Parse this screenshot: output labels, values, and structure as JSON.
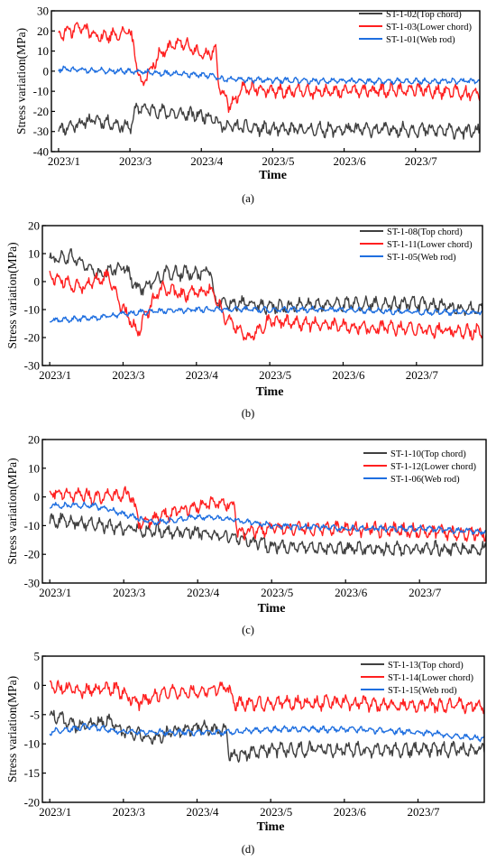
{
  "chart_data": [
    {
      "type": "line",
      "panel_label": "(a)",
      "xlabel": "Time",
      "ylabel": "Stress variation(MPa)",
      "x_tick_labels": [
        "2023/1",
        "2023/3",
        "2023/4",
        "2023/5",
        "2023/6",
        "2023/7"
      ],
      "x_tick_positions": [
        0.0,
        0.5,
        1.0,
        1.5,
        2.0,
        2.5
      ],
      "xlim": [
        -0.05,
        2.95
      ],
      "ylim": [
        -40,
        30
      ],
      "yticks": [
        -40,
        -30,
        -20,
        -10,
        0,
        10,
        20,
        30
      ],
      "legend_position": "top-right",
      "grid": false,
      "series": [
        {
          "name": "ST-1-02(Top chord)",
          "color": "#404040",
          "x": [
            0.0,
            0.25,
            0.5,
            0.55,
            0.8,
            1.0,
            1.1,
            1.12,
            1.5,
            2.0,
            2.5,
            2.9
          ],
          "y": [
            -29,
            -24,
            -28,
            -18,
            -21,
            -22,
            -23,
            -27,
            -29,
            -29,
            -29,
            -30
          ]
        },
        {
          "name": "ST-1-03(Lower chord)",
          "color": "#ff2020",
          "x": [
            0.0,
            0.15,
            0.3,
            0.5,
            0.58,
            0.7,
            0.85,
            1.0,
            1.1,
            1.12,
            1.2,
            1.3,
            1.5,
            2.0,
            2.5,
            2.9
          ],
          "y": [
            18,
            22,
            17,
            20,
            -7,
            8,
            15,
            8,
            10,
            -6,
            -18,
            -8,
            -10,
            -10,
            -9,
            -11
          ]
        },
        {
          "name": "ST-1-01(Web rod)",
          "color": "#1f6fe0",
          "x": [
            0.0,
            0.5,
            1.0,
            1.1,
            1.12,
            1.5,
            2.0,
            2.5,
            2.9
          ],
          "y": [
            1,
            0,
            -2,
            -2,
            -4,
            -4.5,
            -5,
            -5,
            -5
          ]
        }
      ]
    },
    {
      "type": "line",
      "panel_label": "(b)",
      "xlabel": "Time",
      "ylabel": "Stress variation(MPa)",
      "x_tick_labels": [
        "2023/1",
        "2023/3",
        "2023/4",
        "2023/5",
        "2023/6",
        "2023/7"
      ],
      "x_tick_positions": [
        0.0,
        0.5,
        1.0,
        1.5,
        2.0,
        2.5
      ],
      "xlim": [
        -0.05,
        2.95
      ],
      "ylim": [
        -30,
        20
      ],
      "yticks": [
        -30,
        -20,
        -10,
        0,
        10,
        20
      ],
      "legend_position": "top-right",
      "grid": false,
      "series": [
        {
          "name": "ST-1-08(Top chord)",
          "color": "#404040",
          "x": [
            0.0,
            0.15,
            0.35,
            0.5,
            0.6,
            0.8,
            1.0,
            1.1,
            1.12,
            1.5,
            2.0,
            2.5,
            2.9
          ],
          "y": [
            8,
            9,
            2,
            6,
            -3,
            3,
            3,
            4,
            -7,
            -9,
            -8,
            -8,
            -10
          ]
        },
        {
          "name": "ST-1-11(Lower chord)",
          "color": "#ff2020",
          "x": [
            0.0,
            0.2,
            0.4,
            0.5,
            0.6,
            0.75,
            0.9,
            1.1,
            1.2,
            1.35,
            1.5,
            2.0,
            2.5,
            2.9
          ],
          "y": [
            2,
            -2,
            2,
            -10,
            -18,
            -2,
            -5,
            -3,
            -13,
            -20,
            -14,
            -16,
            -17,
            -18
          ]
        },
        {
          "name": "ST-1-05(Web rod)",
          "color": "#1f6fe0",
          "x": [
            0.0,
            0.3,
            0.6,
            1.0,
            1.5,
            2.0,
            2.5,
            2.9
          ],
          "y": [
            -14,
            -13,
            -11,
            -10,
            -10,
            -10,
            -11,
            -11
          ]
        }
      ]
    },
    {
      "type": "line",
      "panel_label": "(c)",
      "xlabel": "Time",
      "ylabel": "Stress variation(MPa)",
      "x_tick_labels": [
        "2023/1",
        "2023/3",
        "2023/4",
        "2023/5",
        "2023/6",
        "2023/7"
      ],
      "x_tick_positions": [
        0.0,
        0.5,
        1.0,
        1.5,
        2.0,
        2.5
      ],
      "xlim": [
        -0.05,
        2.95
      ],
      "ylim": [
        -30,
        20
      ],
      "yticks": [
        -30,
        -20,
        -10,
        0,
        10,
        20
      ],
      "legend_position": "top-right",
      "grid": false,
      "series": [
        {
          "name": "ST-1-10(Top chord)",
          "color": "#404040",
          "x": [
            0.0,
            0.25,
            0.5,
            0.75,
            1.0,
            1.25,
            1.5,
            2.0,
            2.5,
            2.9
          ],
          "y": [
            -8,
            -9,
            -11,
            -12,
            -12,
            -14,
            -17,
            -18,
            -18,
            -18
          ]
        },
        {
          "name": "ST-1-12(Lower chord)",
          "color": "#ff2020",
          "x": [
            0.0,
            0.3,
            0.55,
            0.6,
            0.8,
            1.0,
            1.15,
            1.25,
            1.27,
            1.5,
            2.0,
            2.5,
            2.9
          ],
          "y": [
            2,
            0,
            1,
            -9,
            -6,
            -3,
            -2,
            -3,
            -13,
            -11,
            -11,
            -12,
            -13
          ]
        },
        {
          "name": "ST-1-06(Web rod)",
          "color": "#1f6fe0",
          "x": [
            0.0,
            0.3,
            0.5,
            0.7,
            1.0,
            1.25,
            1.5,
            2.0,
            2.5,
            2.9
          ],
          "y": [
            -3,
            -3,
            -6,
            -9,
            -7,
            -8,
            -10,
            -11,
            -11,
            -12
          ]
        }
      ]
    },
    {
      "type": "line",
      "panel_label": "(d)",
      "xlabel": "Time",
      "ylabel": "Stress variation(MPa)",
      "x_tick_labels": [
        "2023/1",
        "2023/3",
        "2023/4",
        "2023/5",
        "2023/6",
        "2023/7"
      ],
      "x_tick_positions": [
        0.0,
        0.5,
        1.0,
        1.5,
        2.0,
        2.5
      ],
      "xlim": [
        -0.05,
        2.95
      ],
      "ylim": [
        -20,
        5
      ],
      "yticks": [
        -20,
        -15,
        -10,
        -5,
        0,
        5
      ],
      "legend_position": "top-right",
      "grid": false,
      "series": [
        {
          "name": "ST-1-13(Top chord)",
          "color": "#404040",
          "x": [
            0.0,
            0.2,
            0.4,
            0.5,
            0.7,
            1.0,
            1.2,
            1.22,
            1.5,
            2.0,
            2.5,
            2.9
          ],
          "y": [
            -5,
            -7,
            -6,
            -8,
            -9,
            -7,
            -8,
            -12,
            -11,
            -11,
            -11,
            -11
          ]
        },
        {
          "name": "ST-1-14(Lower chord)",
          "color": "#ff2020",
          "x": [
            0.0,
            0.2,
            0.45,
            0.6,
            0.8,
            1.0,
            1.2,
            1.25,
            1.5,
            2.0,
            2.5,
            2.9
          ],
          "y": [
            0,
            -1,
            -0.5,
            -3,
            -1,
            -1,
            0,
            -3,
            -3,
            -3,
            -3.5,
            -3.5
          ]
        },
        {
          "name": "ST-1-15(Web rod)",
          "color": "#1f6fe0",
          "x": [
            0.0,
            0.25,
            0.5,
            0.75,
            1.0,
            1.25,
            1.5,
            2.0,
            2.5,
            2.9
          ],
          "y": [
            -8,
            -7,
            -8,
            -8,
            -8,
            -8,
            -7.5,
            -7.5,
            -8,
            -9
          ]
        }
      ]
    }
  ]
}
